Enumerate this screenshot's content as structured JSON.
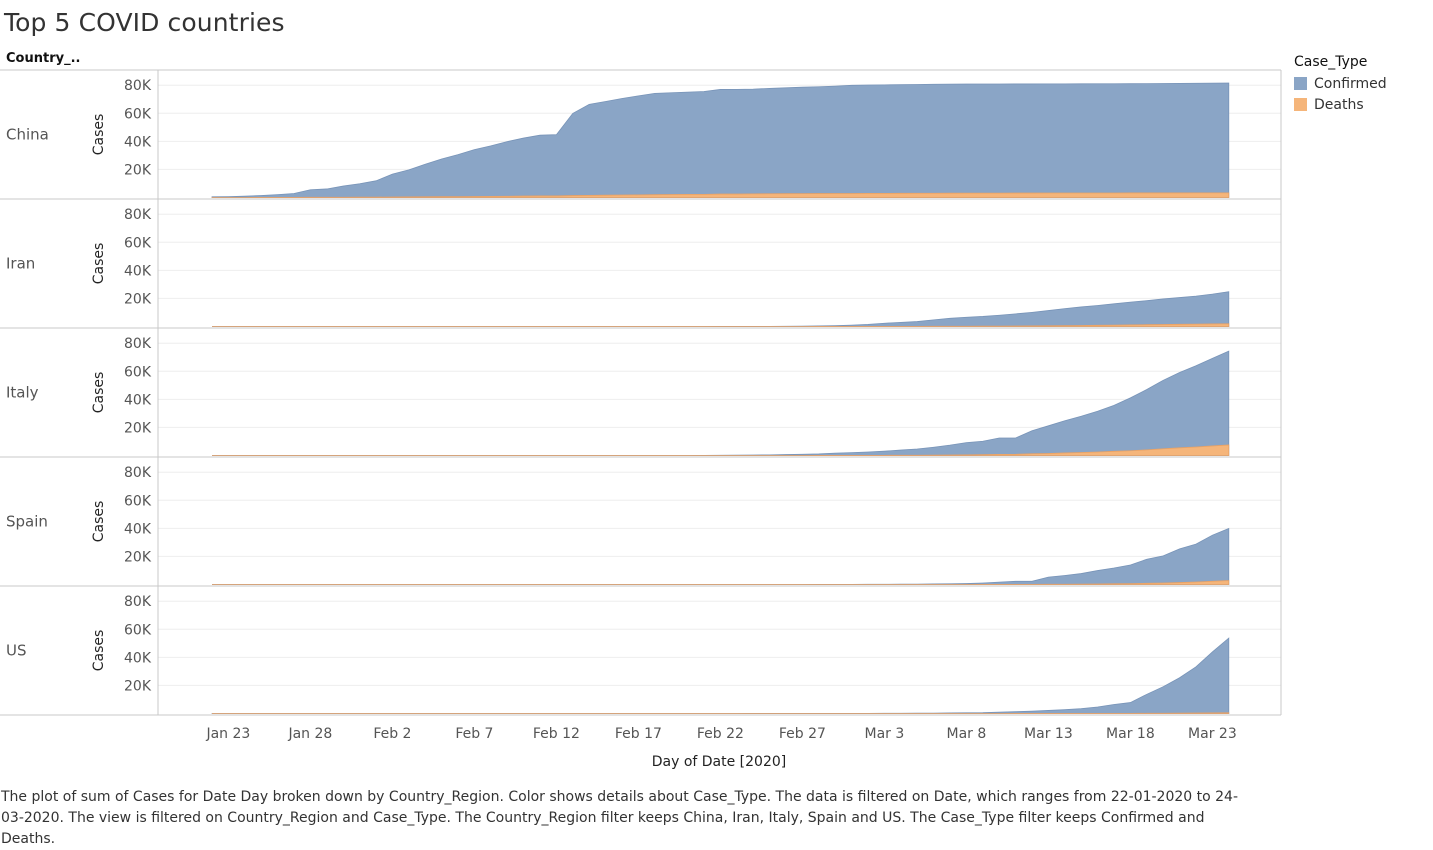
{
  "title": "Top 5 COVID countries",
  "row_header": "Country_..",
  "legend": {
    "title": "Case_Type",
    "items": [
      {
        "label": "Confirmed",
        "color": "#8aa5c6"
      },
      {
        "label": "Deaths",
        "color": "#f5b57a"
      }
    ]
  },
  "caption": "The plot of sum of Cases for Date Day broken down by Country_Region.  Color shows details about Case_Type. The data is filtered on Date, which ranges from 22-01-2020 to 24-03-2020. The view is filtered on Country_Region and Case_Type. The Country_Region filter keeps China, Iran, Italy, Spain and US. The Case_Type filter keeps Confirmed and Deaths.",
  "chart_data": {
    "type": "area",
    "stacked": true,
    "xlabel": "Day of Date [2020]",
    "ylabel": "Cases",
    "ylim": [
      0,
      88000
    ],
    "yticks": [
      "20K",
      "40K",
      "60K",
      "80K"
    ],
    "ytick_values": [
      20000,
      40000,
      60000,
      80000
    ],
    "xticks": [
      {
        "label": "Jan 23",
        "day": 1
      },
      {
        "label": "Jan 28",
        "day": 6
      },
      {
        "label": "Feb 2",
        "day": 11
      },
      {
        "label": "Feb 7",
        "day": 16
      },
      {
        "label": "Feb 12",
        "day": 21
      },
      {
        "label": "Feb 17",
        "day": 26
      },
      {
        "label": "Feb 22",
        "day": 31
      },
      {
        "label": "Feb 27",
        "day": 36
      },
      {
        "label": "Mar 3",
        "day": 41
      },
      {
        "label": "Mar 8",
        "day": 46
      },
      {
        "label": "Mar 13",
        "day": 51
      },
      {
        "label": "Mar 18",
        "day": 56
      },
      {
        "label": "Mar 23",
        "day": 61
      }
    ],
    "x_start_date": "2020-01-22",
    "x_days": 63,
    "grid": true,
    "legend_position": "top-right",
    "panels": [
      {
        "country": "China",
        "series": [
          {
            "name": "Confirmed",
            "values": [
              548,
              643,
              920,
              1406,
              2075,
              2877,
              5509,
              6087,
              8141,
              9802,
              11891,
              16630,
              19716,
              23707,
              27440,
              30587,
              34110,
              36814,
              39829,
              42354,
              44386,
              44759,
              59895,
              66358,
              68413,
              70513,
              72434,
              74211,
              74619,
              75077,
              75550,
              77001,
              77022,
              77241,
              77754,
              78166,
              78600,
              78928,
              79356,
              79932,
              80136,
              80261,
              80386,
              80537,
              80690,
              80770,
              80823,
              80860,
              80887,
              80921,
              80932,
              80945,
              80977,
              81003,
              81033,
              81058,
              81102,
              81156,
              81250,
              81305,
              81435,
              81498,
              81591
            ]
          },
          {
            "name": "Deaths",
            "values": [
              17,
              18,
              26,
              42,
              56,
              82,
              131,
              133,
              171,
              213,
              259,
              361,
              425,
              490,
              562,
              632,
              717,
              804,
              904,
              1011,
              1112,
              1117,
              1369,
              1521,
              1663,
              1766,
              1864,
              2003,
              2116,
              2238,
              2238,
              2443,
              2445,
              2595,
              2665,
              2717,
              2746,
              2790,
              2837,
              2872,
              2914,
              2947,
              2983,
              3015,
              3044,
              3072,
              3100,
              3123,
              3139,
              3161,
              3172,
              3180,
              3193,
              3203,
              3217,
              3230,
              3241,
              3249,
              3253,
              3259,
              3274,
              3274,
              3281
            ]
          }
        ]
      },
      {
        "country": "Iran",
        "series": [
          {
            "name": "Confirmed",
            "values": [
              0,
              0,
              0,
              0,
              0,
              0,
              0,
              0,
              0,
              0,
              0,
              0,
              0,
              0,
              0,
              0,
              0,
              0,
              0,
              0,
              0,
              0,
              0,
              0,
              0,
              0,
              0,
              0,
              2,
              5,
              18,
              28,
              43,
              61,
              95,
              139,
              245,
              388,
              593,
              978,
              1501,
              2336,
              2922,
              3513,
              4747,
              5823,
              6566,
              7161,
              8042,
              9000,
              10075,
              11364,
              12729,
              13938,
              14991,
              16169,
              17361,
              18407,
              19644,
              20610,
              21638,
              23049,
              24811
            ]
          },
          {
            "name": "Deaths",
            "values": [
              0,
              0,
              0,
              0,
              0,
              0,
              0,
              0,
              0,
              0,
              0,
              0,
              0,
              0,
              0,
              0,
              0,
              0,
              0,
              0,
              0,
              0,
              0,
              0,
              0,
              0,
              0,
              0,
              2,
              2,
              4,
              5,
              8,
              12,
              16,
              19,
              26,
              34,
              43,
              54,
              66,
              77,
              92,
              107,
              124,
              145,
              194,
              237,
              291,
              354,
              429,
              514,
              611,
              724,
              853,
              988,
              1135,
              1284,
              1433,
              1556,
              1685,
              1812,
              1934
            ]
          }
        ]
      },
      {
        "country": "Italy",
        "series": [
          {
            "name": "Confirmed",
            "values": [
              0,
              0,
              0,
              0,
              0,
              0,
              0,
              0,
              0,
              2,
              2,
              2,
              2,
              2,
              2,
              2,
              3,
              3,
              3,
              3,
              3,
              3,
              3,
              3,
              3,
              3,
              3,
              3,
              3,
              20,
              62,
              155,
              229,
              322,
              453,
              655,
              888,
              1128,
              1694,
              2036,
              2502,
              3089,
              3858,
              4636,
              5883,
              7375,
              9172,
              10149,
              12462,
              12462,
              17660,
              21157,
              24747,
              27980,
              31506,
              35713,
              41035,
              47021,
              53578,
              59138,
              63927,
              69176,
              74386
            ]
          },
          {
            "name": "Deaths",
            "values": [
              0,
              0,
              0,
              0,
              0,
              0,
              0,
              0,
              0,
              0,
              0,
              0,
              0,
              0,
              0,
              0,
              0,
              0,
              0,
              0,
              0,
              0,
              0,
              0,
              0,
              0,
              0,
              0,
              0,
              1,
              2,
              3,
              7,
              10,
              12,
              17,
              21,
              29,
              34,
              52,
              79,
              107,
              148,
              197,
              233,
              366,
              463,
              631,
              827,
              827,
              1266,
              1441,
              1809,
              2158,
              2503,
              2978,
              3405,
              4032,
              4825,
              5476,
              6077,
              6820,
              7503
            ]
          }
        ]
      },
      {
        "country": "Spain",
        "series": [
          {
            "name": "Confirmed",
            "values": [
              0,
              0,
              0,
              0,
              0,
              0,
              0,
              0,
              0,
              0,
              1,
              1,
              1,
              1,
              1,
              1,
              1,
              1,
              1,
              2,
              2,
              2,
              2,
              2,
              2,
              2,
              2,
              2,
              2,
              2,
              2,
              2,
              2,
              2,
              6,
              13,
              15,
              32,
              45,
              84,
              120,
              165,
              222,
              259,
              400,
              500,
              673,
              1073,
              1695,
              2277,
              2277,
              5232,
              6391,
              7798,
              9942,
              11748,
              13910,
              17963,
              20410,
              25374,
              28768,
              35136,
              39885
            ]
          },
          {
            "name": "Deaths",
            "values": [
              0,
              0,
              0,
              0,
              0,
              0,
              0,
              0,
              0,
              0,
              0,
              0,
              0,
              0,
              0,
              0,
              0,
              0,
              0,
              0,
              0,
              0,
              0,
              0,
              0,
              0,
              0,
              0,
              0,
              0,
              0,
              0,
              0,
              0,
              0,
              0,
              0,
              0,
              0,
              0,
              0,
              1,
              2,
              3,
              5,
              10,
              17,
              28,
              35,
              54,
              55,
              133,
              195,
              289,
              342,
              533,
              623,
              830,
              1043,
              1375,
              1772,
              2311,
              2808
            ]
          }
        ]
      },
      {
        "country": "US",
        "series": [
          {
            "name": "Confirmed",
            "values": [
              1,
              1,
              2,
              2,
              5,
              5,
              5,
              5,
              5,
              7,
              8,
              8,
              11,
              11,
              11,
              11,
              11,
              11,
              11,
              11,
              12,
              12,
              13,
              13,
              13,
              13,
              13,
              13,
              13,
              13,
              15,
              15,
              15,
              51,
              51,
              57,
              58,
              60,
              68,
              74,
              98,
              118,
              149,
              217,
              262,
              402,
              518,
              583,
              959,
              1281,
              1663,
              2179,
              2727,
              3499,
              4632,
              6421,
              7786,
              13680,
              19101,
              25493,
              33276,
              43847,
              53740
            ]
          },
          {
            "name": "Deaths",
            "values": [
              0,
              0,
              0,
              0,
              0,
              0,
              0,
              0,
              0,
              0,
              0,
              0,
              0,
              0,
              0,
              0,
              0,
              0,
              0,
              0,
              0,
              0,
              0,
              0,
              0,
              0,
              0,
              0,
              0,
              0,
              0,
              0,
              0,
              0,
              0,
              0,
              0,
              0,
              0,
              1,
              1,
              6,
              7,
              11,
              12,
              14,
              17,
              21,
              22,
              28,
              36,
              40,
              47,
              54,
              63,
              85,
              108,
              118,
              200,
              244,
              307,
              427,
              552
            ]
          }
        ]
      }
    ]
  }
}
